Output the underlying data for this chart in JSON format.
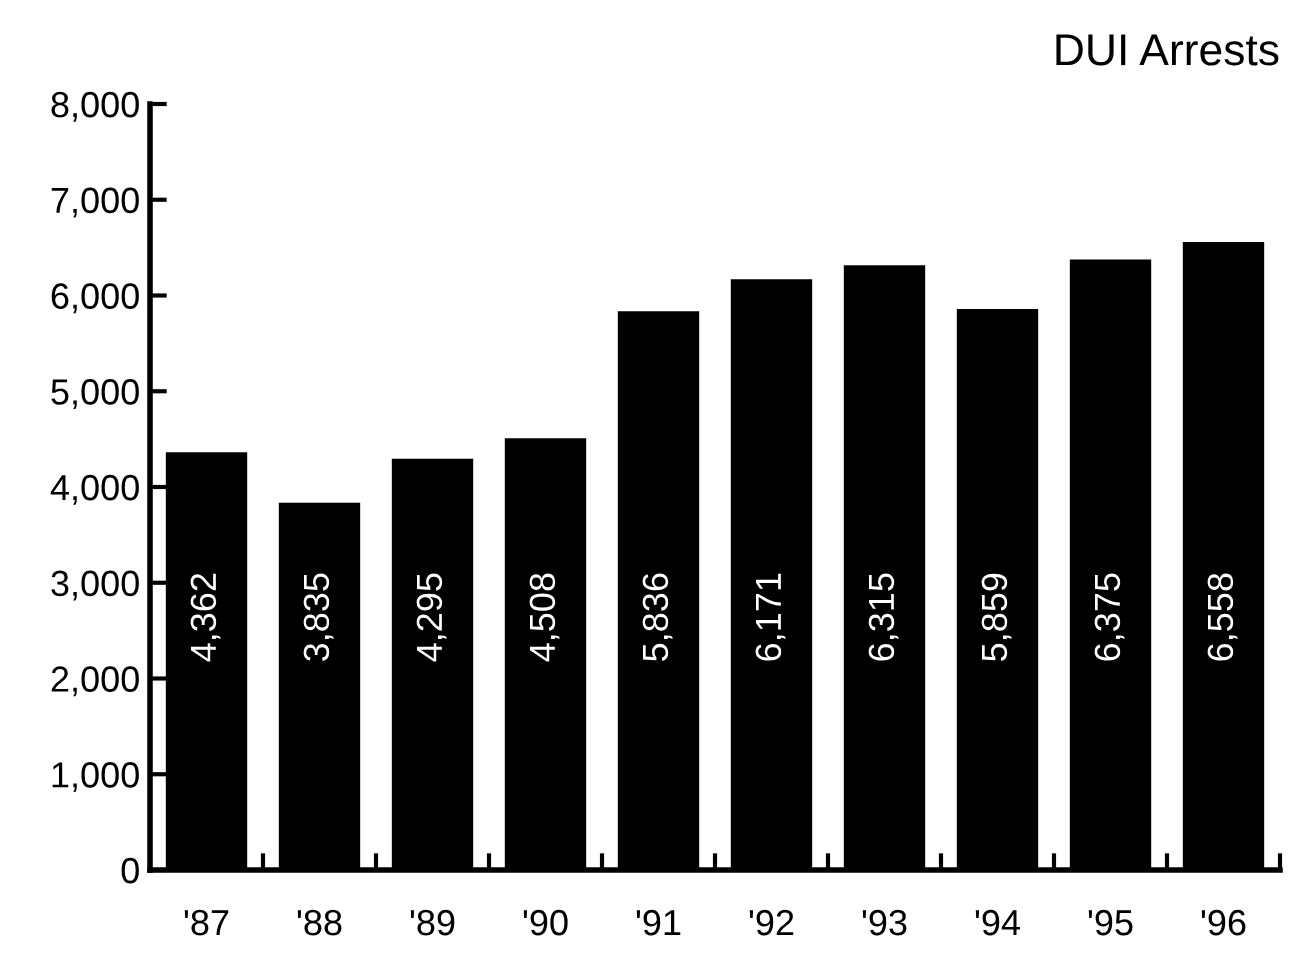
{
  "chart_data": {
    "type": "bar",
    "title": "DUI Arrests",
    "categories": [
      "'87",
      "'88",
      "'89",
      "'90",
      "'91",
      "'92",
      "'93",
      "'94",
      "'95",
      "'96"
    ],
    "values": [
      4362,
      3835,
      4295,
      4508,
      5836,
      6171,
      6315,
      5859,
      6375,
      6558
    ],
    "color": "#000000",
    "ylim": [
      0,
      8000
    ],
    "yticks": [
      {
        "value": 0,
        "label": "0"
      },
      {
        "value": 1000,
        "label": "1,000"
      },
      {
        "value": 2000,
        "label": "2,000"
      },
      {
        "value": 3000,
        "label": "3,000"
      },
      {
        "value": 4000,
        "label": "4,000"
      },
      {
        "value": 5000,
        "label": "5,000"
      },
      {
        "value": 6000,
        "label": "6,000"
      },
      {
        "value": 7000,
        "label": "7,000"
      },
      {
        "value": 8000,
        "label": "8,000"
      }
    ],
    "value_labels": [
      "4,362",
      "3,835",
      "4,295",
      "4,508",
      "5,836",
      "6,171",
      "6,315",
      "5,859",
      "6,375",
      "6,558"
    ],
    "grid": false
  }
}
